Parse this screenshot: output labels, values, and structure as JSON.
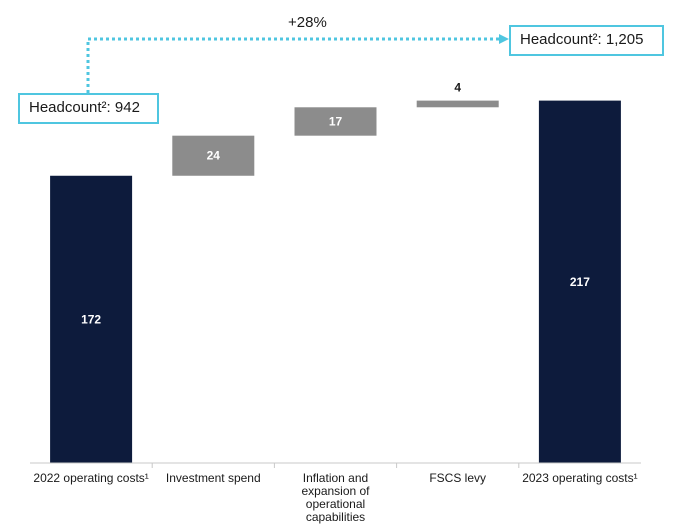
{
  "chart_data": {
    "type": "bar",
    "subtype": "waterfall",
    "categories": [
      "2022 operating costs¹",
      "Investment spend",
      "Inflation and expansion of operational capabilities",
      "FSCS levy",
      "2023 operating costs¹"
    ],
    "category_lines": [
      [
        "2022 operating costs¹"
      ],
      [
        "Investment spend"
      ],
      [
        "Inflation and",
        "expansion of",
        "operational",
        "capabilities"
      ],
      [
        "FSCS levy"
      ],
      [
        "2023 operating costs¹"
      ]
    ],
    "values": [
      172,
      24,
      17,
      4,
      217
    ],
    "value_labels": [
      "172",
      "24",
      "17",
      "4",
      "217"
    ],
    "bar_kinds": [
      "total",
      "delta",
      "delta",
      "delta",
      "total"
    ],
    "ylim": [
      0,
      230
    ],
    "grid": false,
    "colors": {
      "total": "#0d1b3c",
      "delta": "#8c8c8c",
      "accent": "#4fc6e0",
      "axis": "#c8c8c8"
    },
    "annotations": {
      "headcount_start": "Headcount²: 942",
      "headcount_end": "Headcount²: 1,205",
      "growth": "+28%"
    }
  }
}
